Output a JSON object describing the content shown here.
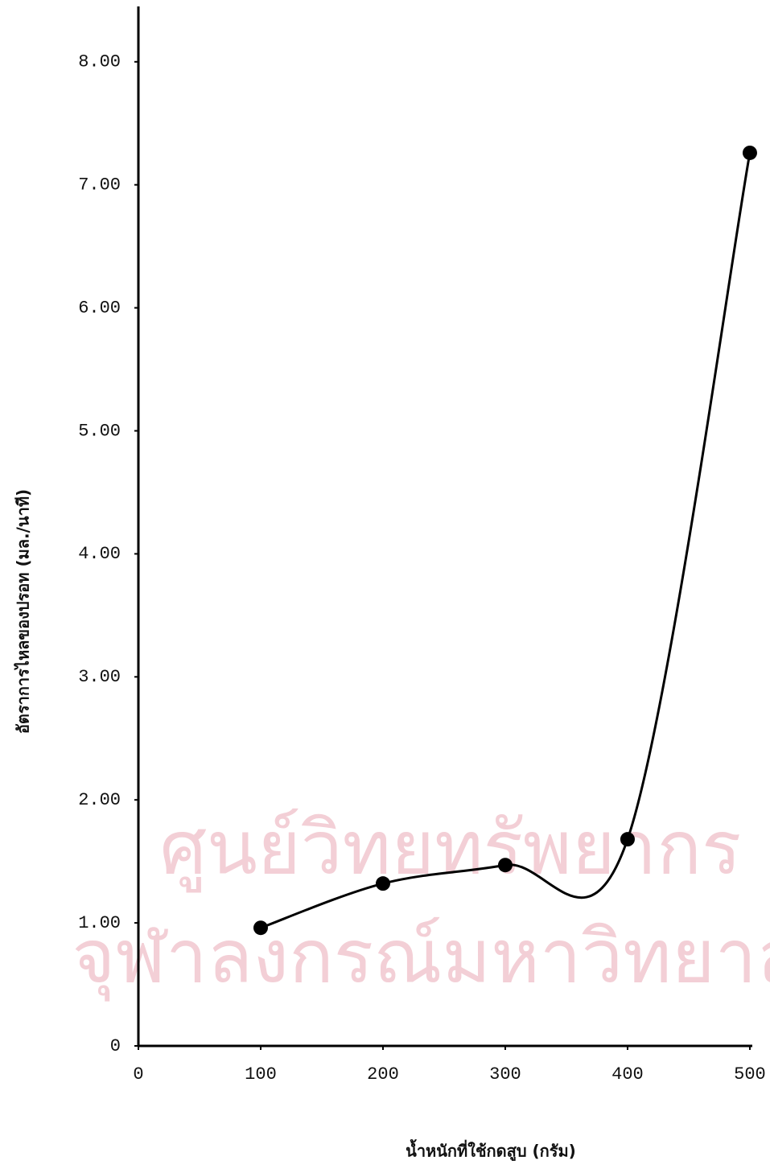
{
  "chart_data": {
    "type": "line",
    "watermark": [
      "ศูนย์วิทยทรัพยากร",
      "จุฬาลงกรณ์มหาวิทยาลัย"
    ],
    "xlabel": "น้ำหนักที่ใช้กดสูบ (กรัม)",
    "ylabel": "อัตราการไหลของปรอท (มล./นาที)",
    "x": [
      100,
      200,
      300,
      400,
      500
    ],
    "values": [
      0.96,
      1.32,
      1.47,
      1.68,
      7.26
    ],
    "color": "#000000",
    "xlim": [
      0,
      502
    ],
    "ylim": [
      0,
      8.45
    ],
    "xticks": [
      0,
      100,
      200,
      300,
      400,
      500
    ],
    "yticks": [
      0,
      {
        "value": 1,
        "label": "1.00"
      },
      {
        "value": 2,
        "label": "2.00"
      },
      {
        "value": 3,
        "label": "3.00"
      },
      {
        "value": 4,
        "label": "4.00"
      },
      {
        "value": 5,
        "label": "5.00"
      },
      {
        "value": 6,
        "label": "6.00"
      },
      {
        "value": 7,
        "label": "7.00"
      },
      {
        "value": 8,
        "label": "8.00"
      }
    ]
  }
}
